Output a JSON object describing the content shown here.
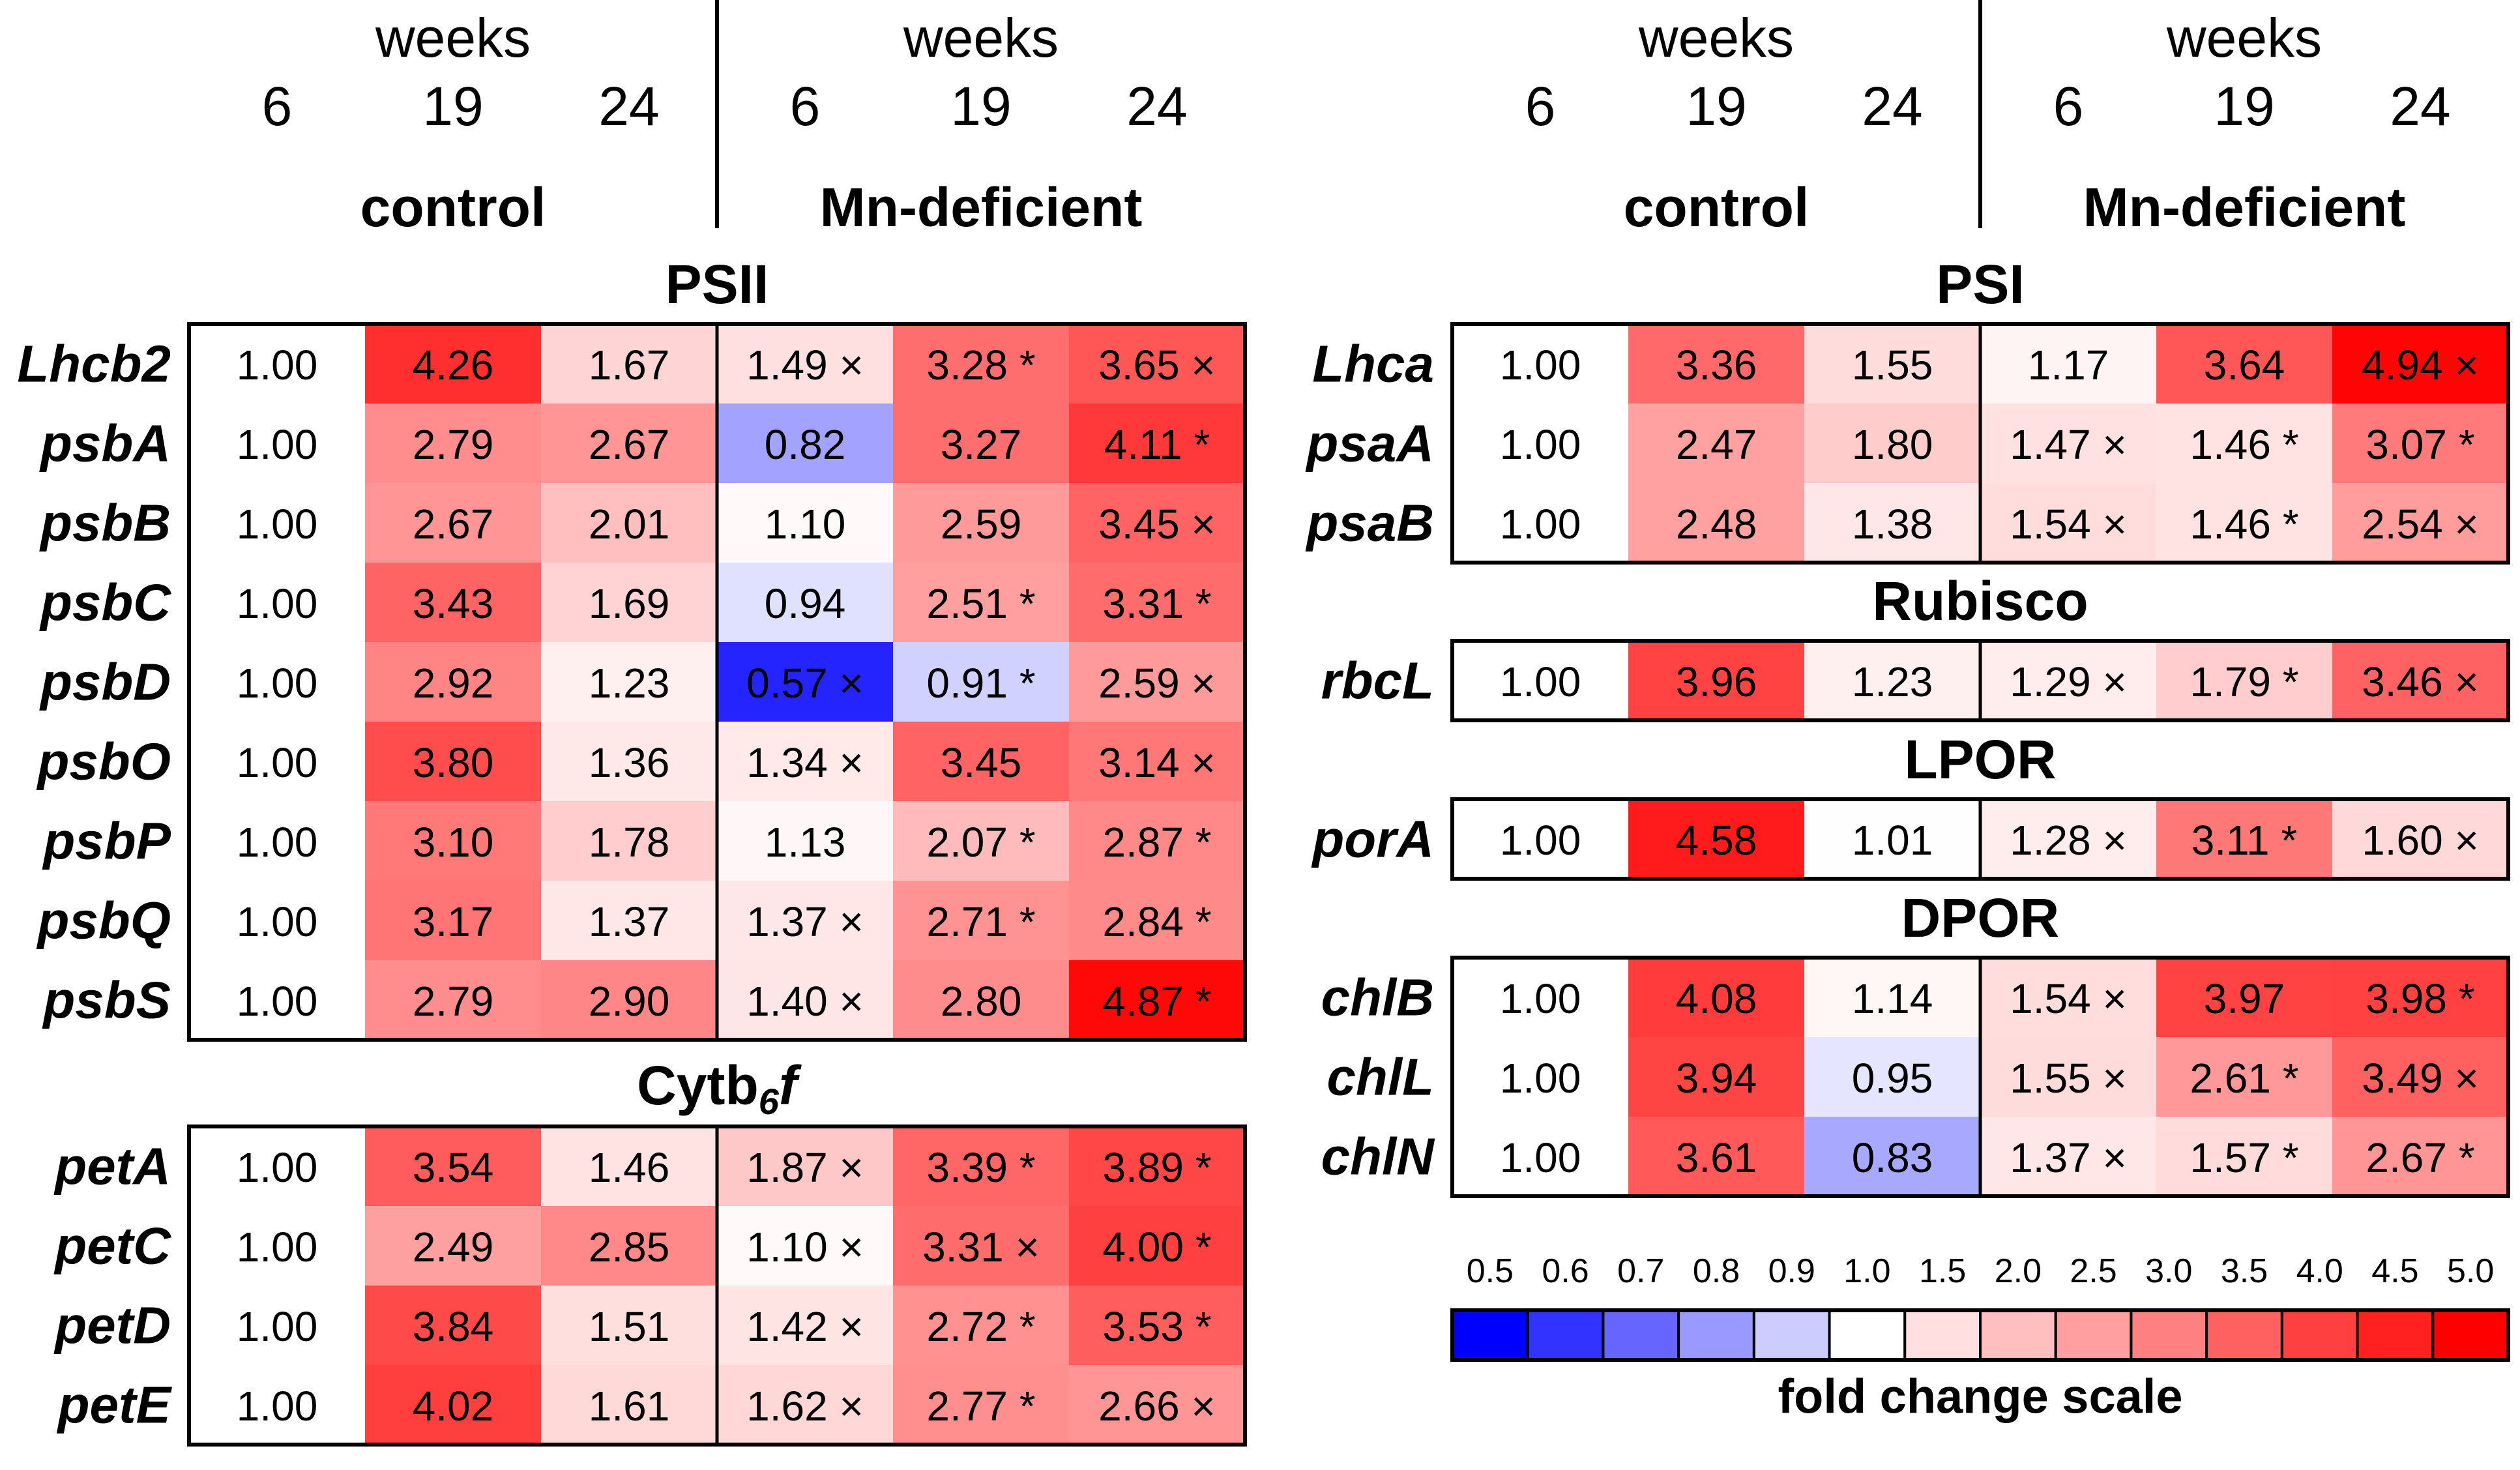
{
  "chart_data": {
    "type": "heatmap",
    "value_meaning": "fold change",
    "row_label_style": "italic",
    "markers": {
      "asterisk": "*",
      "cross": "×"
    },
    "groups": [
      {
        "week_label": "weeks",
        "condition": "control",
        "weeks": [
          "6",
          "19",
          "24"
        ]
      },
      {
        "week_label": "weeks",
        "condition": "Mn-deficient",
        "weeks": [
          "6",
          "19",
          "24"
        ]
      }
    ],
    "columns": [
      "control 6",
      "control 19",
      "control 24",
      "Mn-deficient 6",
      "Mn-deficient 19",
      "Mn-deficient 24"
    ],
    "blocks": [
      {
        "title": "PSII",
        "title_subscript": "",
        "title_suffix": "",
        "rows": [
          {
            "gene": "Lhcb2",
            "values": [
              1.0,
              4.26,
              1.67,
              1.49,
              3.28,
              3.65
            ],
            "markers": [
              "",
              "",
              "",
              "×",
              "*",
              "×"
            ]
          },
          {
            "gene": "psbA",
            "values": [
              1.0,
              2.79,
              2.67,
              0.82,
              3.27,
              4.11
            ],
            "markers": [
              "",
              "",
              "",
              "",
              "",
              "*"
            ]
          },
          {
            "gene": "psbB",
            "values": [
              1.0,
              2.67,
              2.01,
              1.1,
              2.59,
              3.45
            ],
            "markers": [
              "",
              "",
              "",
              "",
              "",
              "×"
            ]
          },
          {
            "gene": "psbC",
            "values": [
              1.0,
              3.43,
              1.69,
              0.94,
              2.51,
              3.31
            ],
            "markers": [
              "",
              "",
              "",
              "",
              "*",
              "*"
            ]
          },
          {
            "gene": "psbD",
            "values": [
              1.0,
              2.92,
              1.23,
              0.57,
              0.91,
              2.59
            ],
            "markers": [
              "",
              "",
              "",
              "×",
              "*",
              "×"
            ]
          },
          {
            "gene": "psbO",
            "values": [
              1.0,
              3.8,
              1.36,
              1.34,
              3.45,
              3.14
            ],
            "markers": [
              "",
              "",
              "",
              "×",
              "",
              "×"
            ]
          },
          {
            "gene": "psbP",
            "values": [
              1.0,
              3.1,
              1.78,
              1.13,
              2.07,
              2.87
            ],
            "markers": [
              "",
              "",
              "",
              "",
              "*",
              "*"
            ]
          },
          {
            "gene": "psbQ",
            "values": [
              1.0,
              3.17,
              1.37,
              1.37,
              2.71,
              2.84
            ],
            "markers": [
              "",
              "",
              "",
              "×",
              "*",
              "*"
            ]
          },
          {
            "gene": "psbS",
            "values": [
              1.0,
              2.79,
              2.9,
              1.4,
              2.8,
              4.87
            ],
            "markers": [
              "",
              "",
              "",
              "×",
              "",
              "*"
            ]
          }
        ]
      },
      {
        "title": "Cytb",
        "title_subscript": "6",
        "title_suffix": "f",
        "rows": [
          {
            "gene": "petA",
            "values": [
              1.0,
              3.54,
              1.46,
              1.87,
              3.39,
              3.89
            ],
            "markers": [
              "",
              "",
              "",
              "×",
              "*",
              "*"
            ]
          },
          {
            "gene": "petC",
            "values": [
              1.0,
              2.49,
              2.85,
              1.1,
              3.31,
              4.0
            ],
            "markers": [
              "",
              "",
              "",
              "×",
              "×",
              "*"
            ]
          },
          {
            "gene": "petD",
            "values": [
              1.0,
              3.84,
              1.51,
              1.42,
              2.72,
              3.53
            ],
            "markers": [
              "",
              "",
              "",
              "×",
              "*",
              "*"
            ]
          },
          {
            "gene": "petE",
            "values": [
              1.0,
              4.02,
              1.61,
              1.62,
              2.77,
              2.66
            ],
            "markers": [
              "",
              "",
              "",
              "×",
              "*",
              "×"
            ]
          }
        ]
      },
      {
        "title": "PSI",
        "title_subscript": "",
        "title_suffix": "",
        "rows": [
          {
            "gene": "Lhca",
            "values": [
              1.0,
              3.36,
              1.55,
              1.17,
              3.64,
              4.94
            ],
            "markers": [
              "",
              "",
              "",
              "",
              "",
              "×"
            ]
          },
          {
            "gene": "psaA",
            "values": [
              1.0,
              2.47,
              1.8,
              1.47,
              1.46,
              3.07
            ],
            "markers": [
              "",
              "",
              "",
              "×",
              "*",
              "*"
            ]
          },
          {
            "gene": "psaB",
            "values": [
              1.0,
              2.48,
              1.38,
              1.54,
              1.46,
              2.54
            ],
            "markers": [
              "",
              "",
              "",
              "×",
              "*",
              "×"
            ]
          }
        ]
      },
      {
        "title": "Rubisco",
        "title_subscript": "",
        "title_suffix": "",
        "rows": [
          {
            "gene": "rbcL",
            "values": [
              1.0,
              3.96,
              1.23,
              1.29,
              1.79,
              3.46
            ],
            "markers": [
              "",
              "",
              "",
              "×",
              "*",
              "×"
            ]
          }
        ]
      },
      {
        "title": "LPOR",
        "title_subscript": "",
        "title_suffix": "",
        "rows": [
          {
            "gene": "porA",
            "values": [
              1.0,
              4.58,
              1.01,
              1.28,
              3.11,
              1.6
            ],
            "markers": [
              "",
              "",
              "",
              "×",
              "*",
              "×"
            ]
          }
        ]
      },
      {
        "title": "DPOR",
        "title_subscript": "",
        "title_suffix": "",
        "rows": [
          {
            "gene": "chlB",
            "values": [
              1.0,
              4.08,
              1.14,
              1.54,
              3.97,
              3.98
            ],
            "markers": [
              "",
              "",
              "",
              "×",
              "",
              "*"
            ]
          },
          {
            "gene": "chlL",
            "values": [
              1.0,
              3.94,
              0.95,
              1.55,
              2.61,
              3.49
            ],
            "markers": [
              "",
              "",
              "",
              "×",
              "*",
              "×"
            ]
          },
          {
            "gene": "chlN",
            "values": [
              1.0,
              3.61,
              0.83,
              1.37,
              1.57,
              2.67
            ],
            "markers": [
              "",
              "",
              "",
              "×",
              "*",
              "*"
            ]
          }
        ]
      }
    ],
    "color_scale": {
      "title": "fold change scale",
      "ticks": [
        "0.5",
        "0.6",
        "0.7",
        "0.8",
        "0.9",
        "1.0",
        "1.5",
        "2.0",
        "2.5",
        "3.0",
        "3.5",
        "4.0",
        "4.5",
        "5.0"
      ],
      "min": 0.5,
      "mid": 1.0,
      "max": 5.0,
      "low_color": "#0000ff",
      "mid_color": "#ffffff",
      "high_color": "#ff0000",
      "dark_text_color": "#000000"
    }
  }
}
